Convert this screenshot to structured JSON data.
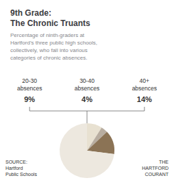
{
  "chart_data": {
    "type": "pie",
    "title": "9th Grade:\nThe Chronic Truants",
    "subtitle": "Percentage of ninth-graders at\nHartford’s three public high schools,\ncollectively, who fall into various\ncategories of chronic absences.",
    "categories": [
      "20-30\nabsences",
      "30-40\nabsences",
      "40+\nabsences",
      null
    ],
    "values": [
      9,
      4,
      14,
      73
    ],
    "value_labels": [
      "9%",
      "4%",
      "14%",
      null
    ],
    "data_labels": true,
    "colors": [
      "#e8e1d1",
      "#b8ada0",
      "#8b7355",
      "#ede8df"
    ],
    "annotations": [
      "SOURCE:\nHartford\nPublic Schools",
      "THE\nHARTFORD\nCOURANT"
    ]
  }
}
